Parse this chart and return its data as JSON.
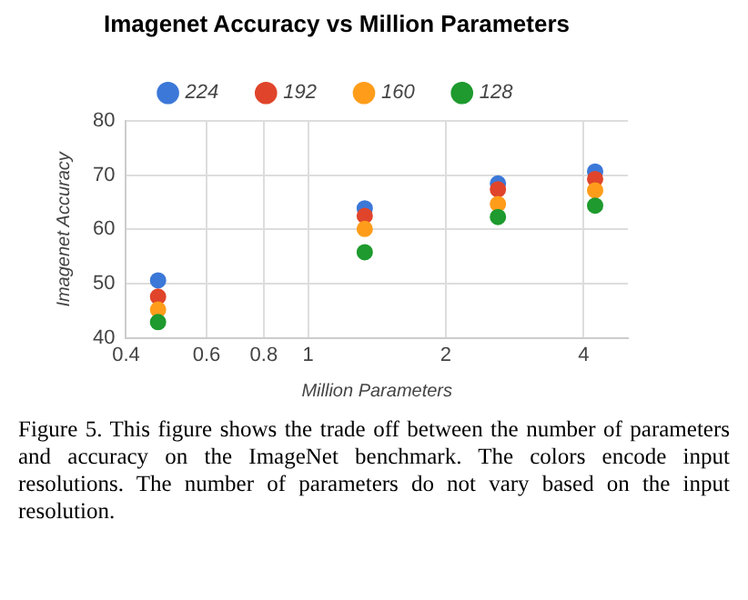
{
  "chart_data": {
    "type": "scatter",
    "title": "Imagenet Accuracy vs Million Parameters",
    "xlabel": "Million Parameters",
    "ylabel": "Imagenet Accuracy",
    "x": [
      0.47,
      1.33,
      2.6,
      4.24
    ],
    "series": [
      {
        "name": "224",
        "color": "#3c78d8",
        "values": [
          50.6,
          63.9,
          68.5,
          70.7
        ]
      },
      {
        "name": "192",
        "color": "#e0452b",
        "values": [
          47.6,
          62.5,
          67.4,
          69.3
        ]
      },
      {
        "name": "160",
        "color": "#ff9d1b",
        "values": [
          45.2,
          60.1,
          64.7,
          67.2
        ]
      },
      {
        "name": "128",
        "color": "#1e9a2e",
        "values": [
          42.9,
          55.8,
          62.3,
          64.4
        ]
      }
    ],
    "log": "x",
    "xlim": [
      0.4,
      5
    ],
    "xticks": [
      0.4,
      0.6,
      0.8,
      1,
      2,
      4
    ],
    "ylim": [
      40,
      80
    ],
    "yticks": [
      40,
      50,
      60,
      70,
      80
    ],
    "grid": true,
    "legend": "top",
    "marker": "circle",
    "annotations": [
      "Figure 5. This figure shows the trade off between the number of parameters and accuracy on the ImageNet benchmark. The colors encode input resolutions. The number of parameters do not vary based on the input resolution."
    ]
  }
}
